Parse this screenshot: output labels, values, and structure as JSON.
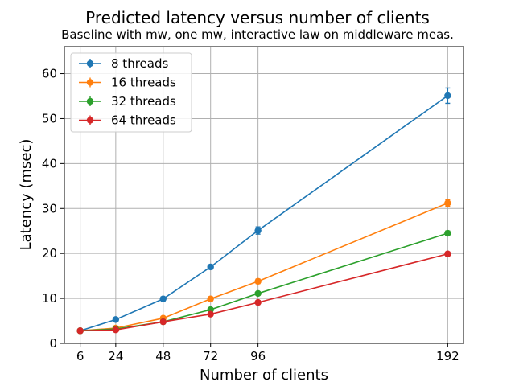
{
  "chart_data": {
    "type": "line",
    "title": "Predicted latency versus number of clients",
    "subtitle": "Baseline with mw, one mw, interactive law on middleware meas.",
    "xlabel": "Number of clients",
    "ylabel": "Latency (msec)",
    "x": [
      6,
      24,
      48,
      72,
      96,
      192
    ],
    "xlim": [
      -2,
      200
    ],
    "ylim": [
      0,
      66
    ],
    "xticks": [
      6,
      24,
      48,
      72,
      96,
      192
    ],
    "yticks": [
      0,
      10,
      20,
      30,
      40,
      50,
      60
    ],
    "grid": true,
    "legend_position": "top-left",
    "error_bars": true,
    "series": [
      {
        "name": "8 threads",
        "color": "#1f77b4",
        "values": [
          2.8,
          5.3,
          9.9,
          17.0,
          25.1,
          55.1
        ],
        "errors": [
          0.2,
          0.3,
          0.4,
          0.5,
          0.8,
          1.7
        ]
      },
      {
        "name": "16 threads",
        "color": "#ff7f0e",
        "values": [
          2.8,
          3.4,
          5.6,
          9.9,
          13.8,
          31.2
        ],
        "errors": [
          0.1,
          0.2,
          0.3,
          0.4,
          0.5,
          0.7
        ]
      },
      {
        "name": "32 threads",
        "color": "#2ca02c",
        "values": [
          2.8,
          3.2,
          4.8,
          7.5,
          11.1,
          24.5
        ],
        "errors": [
          0.1,
          0.1,
          0.2,
          0.3,
          0.4,
          0.5
        ]
      },
      {
        "name": "64 threads",
        "color": "#d62728",
        "values": [
          2.8,
          3.0,
          4.8,
          6.5,
          9.1,
          19.9
        ],
        "errors": [
          0.1,
          0.1,
          0.2,
          0.2,
          0.3,
          0.4
        ]
      }
    ]
  }
}
